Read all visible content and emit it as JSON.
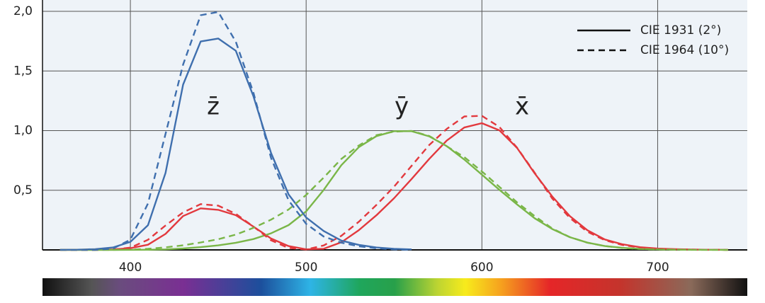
{
  "chart_data": {
    "type": "line",
    "x": [
      360,
      370,
      380,
      390,
      400,
      410,
      420,
      430,
      440,
      450,
      460,
      470,
      480,
      490,
      500,
      510,
      520,
      530,
      540,
      550,
      560,
      570,
      580,
      590,
      600,
      610,
      620,
      630,
      640,
      650,
      660,
      670,
      680,
      690,
      700,
      710,
      720,
      730,
      740
    ],
    "series": [
      {
        "color": "#e2393e",
        "dash": "solid",
        "values": [
          0.0001,
          0.0004,
          0.0014,
          0.0042,
          0.0143,
          0.0435,
          0.1344,
          0.2839,
          0.3483,
          0.3362,
          0.2908,
          0.1954,
          0.0956,
          0.032,
          0.0049,
          0.0093,
          0.0633,
          0.1655,
          0.2904,
          0.4334,
          0.5945,
          0.7621,
          0.9163,
          1.0263,
          1.0622,
          1.0026,
          0.8544,
          0.6424,
          0.4479,
          0.2835,
          0.1649,
          0.0874,
          0.0468,
          0.0227,
          0.0114,
          0.0058,
          0.0029,
          0.0014,
          0.0007
        ]
      },
      {
        "color": "#7ab648",
        "dash": "solid",
        "values": [
          0,
          0,
          0,
          0.0001,
          0.0004,
          0.0012,
          0.004,
          0.0116,
          0.023,
          0.038,
          0.06,
          0.091,
          0.139,
          0.208,
          0.323,
          0.503,
          0.71,
          0.862,
          0.954,
          0.995,
          0.995,
          0.952,
          0.87,
          0.757,
          0.631,
          0.503,
          0.381,
          0.265,
          0.175,
          0.107,
          0.061,
          0.032,
          0.017,
          0.0082,
          0.0041,
          0.0021,
          0.001,
          0.0005,
          0.0002
        ]
      },
      {
        "color": "#3f6fae",
        "dash": "solid",
        "values": [
          0.0006,
          0.0019,
          0.0065,
          0.0201,
          0.0679,
          0.2074,
          0.6456,
          1.3856,
          1.7471,
          1.7721,
          1.6692,
          1.2876,
          0.813,
          0.4652,
          0.272,
          0.1582,
          0.0782,
          0.0422,
          0.0203,
          0.0087,
          0.0039,
          null,
          null,
          null,
          null,
          null,
          null,
          null,
          null,
          null,
          null,
          null,
          null,
          null,
          null,
          null,
          null,
          null,
          null
        ]
      },
      {
        "color": "#e2393e",
        "dash": "dashed",
        "values": [
          0,
          0,
          0.0002,
          0.0024,
          0.0191,
          0.0847,
          0.2045,
          0.3147,
          0.3837,
          0.3707,
          0.3023,
          0.1956,
          0.0805,
          0.0162,
          0.0038,
          0.0375,
          0.1177,
          0.2365,
          0.3768,
          0.5298,
          0.7052,
          0.8787,
          1.0142,
          1.1185,
          1.124,
          1.0305,
          0.8563,
          0.6475,
          0.4316,
          0.2683,
          0.1526,
          0.0813,
          0.0409,
          0.0199,
          0.0096,
          0.0046,
          0.0022,
          0.001,
          0.0005
        ]
      },
      {
        "color": "#7ab648",
        "dash": "dashed",
        "values": [
          0,
          0,
          0,
          0.0003,
          0.002,
          0.0088,
          0.0214,
          0.0387,
          0.0621,
          0.0895,
          0.1282,
          0.1852,
          0.2536,
          0.3391,
          0.4608,
          0.6067,
          0.7618,
          0.8752,
          0.962,
          0.9918,
          0.9973,
          0.9556,
          0.8689,
          0.7774,
          0.6583,
          0.528,
          0.3981,
          0.2835,
          0.1798,
          0.1076,
          0.0603,
          0.0318,
          0.0159,
          0.0077,
          0.0037,
          0.0018,
          0.0008,
          0.0004,
          0.0002
        ]
      },
      {
        "color": "#3f6fae",
        "dash": "dashed",
        "values": [
          0.0005,
          0.0006,
          0.0007,
          0.0105,
          0.086,
          0.3894,
          0.9725,
          1.5535,
          1.9673,
          1.9948,
          1.7454,
          1.3176,
          0.7721,
          0.4153,
          0.2185,
          0.112,
          0.0607,
          0.0305,
          0.0137,
          0.004,
          0,
          null,
          null,
          null,
          null,
          null,
          null,
          null,
          null,
          null,
          null,
          null,
          null,
          null,
          null,
          null,
          null,
          null,
          null
        ]
      }
    ],
    "legend": [
      {
        "label": "CIE 1931 (2°)",
        "dash": "solid"
      },
      {
        "label": "CIE 1964 (10°)",
        "dash": "dashed"
      }
    ],
    "annotations": [
      "z̄",
      "ȳ",
      "x̄"
    ],
    "xlim": [
      350,
      751
    ],
    "ylim": [
      0,
      2.095
    ],
    "xticks": [
      400,
      500,
      600,
      700
    ],
    "yticks": [
      {
        "value": 0.5,
        "label": "0,5"
      },
      {
        "value": 1.0,
        "label": "1,0"
      },
      {
        "value": 1.5,
        "label": "1,5"
      },
      {
        "value": 2.0,
        "label": "2,0"
      }
    ],
    "grid": true
  }
}
